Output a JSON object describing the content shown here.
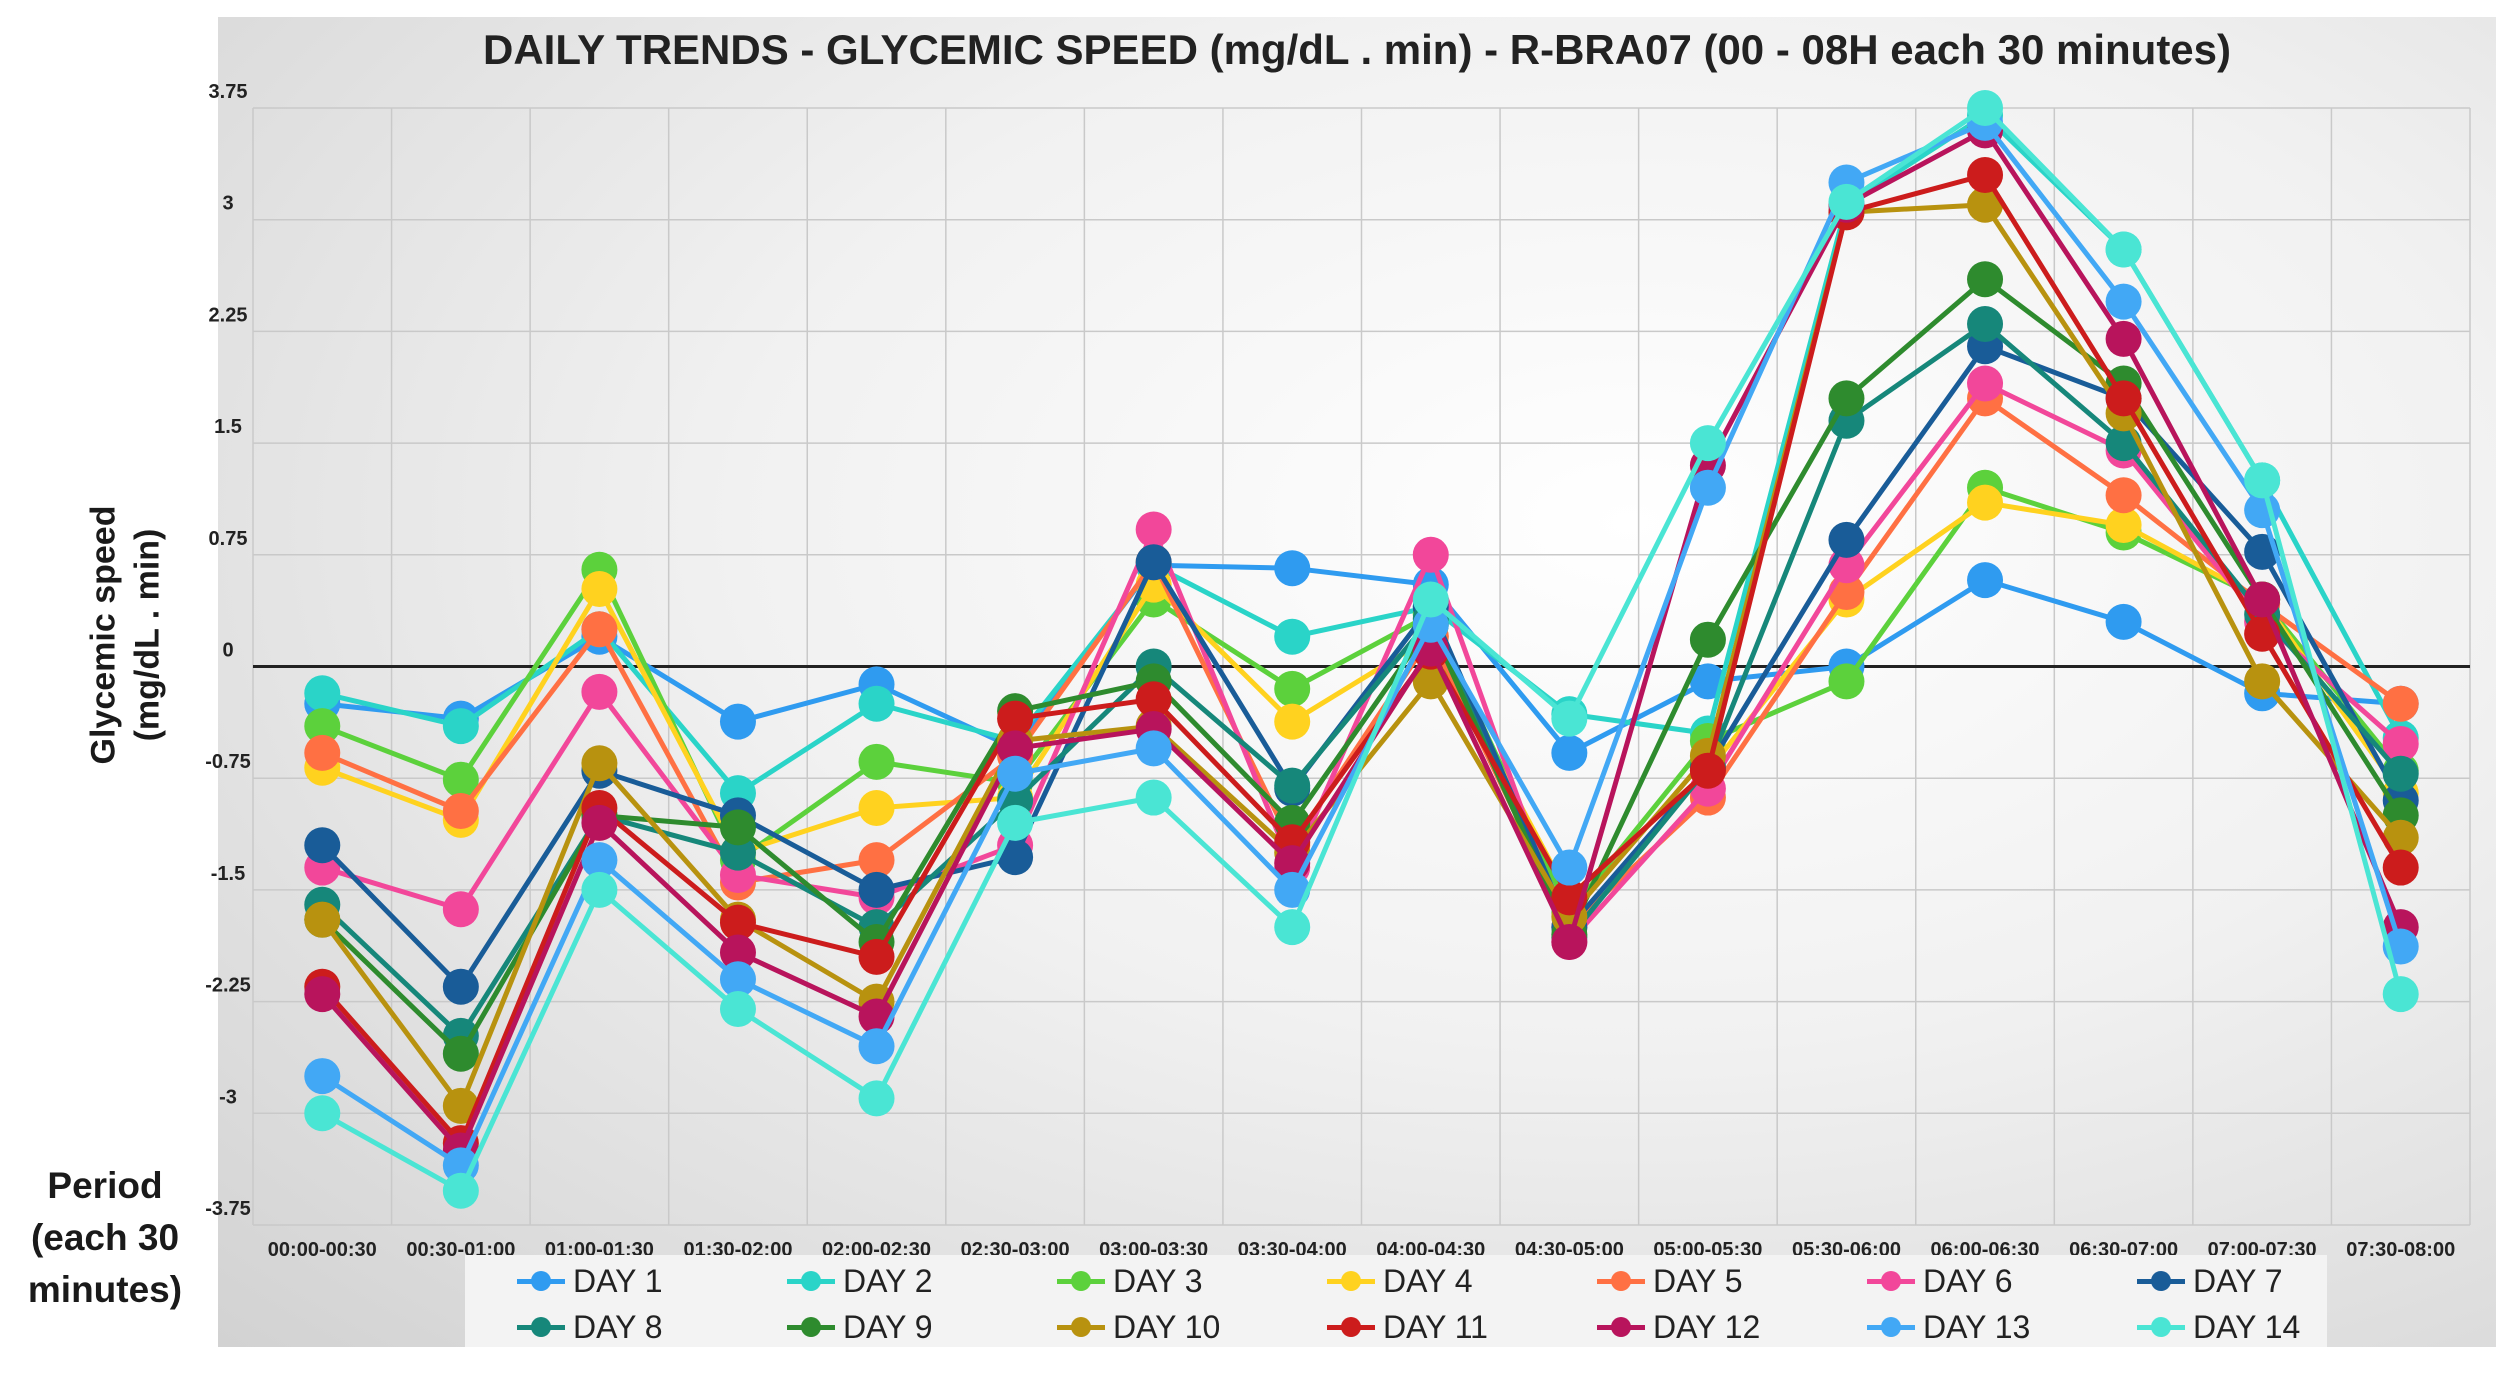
{
  "chart_data": {
    "type": "line",
    "title": "DAILY TRENDS - GLYCEMIC SPEED (mg/dL . min) - R-BRA07 (00 - 08H each 30 minutes)",
    "ylabel_line1": "Glycemic speed",
    "ylabel_line2": "(mg/dL . min)",
    "xlabel_line1": "Period",
    "xlabel_line2": "(each 30",
    "xlabel_line3": "minutes)",
    "ylim": [
      -3.75,
      3.75
    ],
    "yticks": [
      -3.75,
      -3,
      -2.25,
      -1.5,
      -0.75,
      0,
      0.75,
      1.5,
      2.25,
      3,
      3.75
    ],
    "ytick_labels": [
      "-3.75",
      "-3",
      "-2.25",
      "-1.5",
      "-0.75",
      "0",
      "0.75",
      "1.5",
      "2.25",
      "3",
      "3.75"
    ],
    "categories": [
      "00:00-00:30",
      "00:30-01:00",
      "01:00-01:30",
      "01:30-02:00",
      "02:00-02:30",
      "02:30-03:00",
      "03:00-03:30",
      "03:30-04:00",
      "04:00-04:30",
      "04:30-05:00",
      "05:00-05:30",
      "05:30-06:00",
      "06:00-06:30",
      "06:30-07:00",
      "07:00-07:30",
      "07:30-08:00"
    ],
    "legend_position": "bottom",
    "series": [
      {
        "name": "DAY 1",
        "color": "#2f9bf0",
        "values": [
          -0.25,
          -0.35,
          0.2,
          -0.37,
          -0.12,
          -0.55,
          0.68,
          0.66,
          0.55,
          -0.58,
          -0.1,
          0.0,
          0.58,
          0.3,
          -0.18,
          -0.25
        ]
      },
      {
        "name": "DAY 2",
        "color": "#2ad4c8",
        "values": [
          -0.18,
          -0.4,
          0.25,
          -0.85,
          -0.25,
          -0.5,
          0.68,
          0.2,
          0.4,
          -0.32,
          -0.45,
          3.1,
          3.7,
          2.8,
          1.25,
          -0.48
        ]
      },
      {
        "name": "DAY 3",
        "color": "#5cd13c",
        "values": [
          -0.4,
          -0.76,
          0.65,
          -1.3,
          -0.64,
          -0.78,
          0.45,
          -0.15,
          0.35,
          -1.65,
          -0.5,
          -0.1,
          1.2,
          0.9,
          0.45,
          -0.7
        ]
      },
      {
        "name": "DAY 4",
        "color": "#ffd21f",
        "values": [
          -0.68,
          -1.03,
          0.52,
          -1.25,
          -0.95,
          -0.88,
          0.55,
          -0.37,
          0.2,
          -1.55,
          -0.7,
          0.45,
          1.1,
          0.95,
          0.45,
          -0.85
        ]
      },
      {
        "name": "DAY 5",
        "color": "#ff7043",
        "values": [
          -0.58,
          -0.97,
          0.25,
          -1.45,
          -1.3,
          -0.6,
          0.7,
          -1.2,
          0.2,
          -1.75,
          -0.88,
          0.5,
          1.8,
          1.15,
          0.42,
          -0.25
        ]
      },
      {
        "name": "DAY 6",
        "color": "#f2479a",
        "values": [
          -1.35,
          -1.63,
          -0.17,
          -1.4,
          -1.55,
          -1.2,
          0.92,
          -1.35,
          0.75,
          -1.85,
          -0.82,
          0.68,
          1.9,
          1.45,
          0.3,
          -0.52
        ]
      },
      {
        "name": "DAY 7",
        "color": "#195c98",
        "values": [
          -1.2,
          -2.15,
          -0.7,
          -1.0,
          -1.5,
          -1.28,
          0.7,
          -0.82,
          0.4,
          -1.75,
          -0.68,
          0.85,
          2.15,
          1.8,
          0.77,
          -0.9
        ]
      },
      {
        "name": "DAY 8",
        "color": "#16877a",
        "values": [
          -1.6,
          -2.48,
          -1.0,
          -1.25,
          -1.75,
          -0.9,
          0.0,
          -0.8,
          0.32,
          -1.82,
          -0.68,
          1.65,
          2.3,
          1.5,
          0.35,
          -0.72
        ]
      },
      {
        "name": "DAY 9",
        "color": "#2e8b2e",
        "values": [
          -1.7,
          -2.6,
          -1.0,
          -1.08,
          -1.85,
          -0.3,
          -0.1,
          -1.05,
          0.28,
          -1.8,
          0.18,
          1.8,
          2.6,
          1.9,
          0.45,
          -1.0
        ]
      },
      {
        "name": "DAY 10",
        "color": "#b8920f",
        "values": [
          -1.7,
          -2.95,
          -0.65,
          -1.7,
          -2.25,
          -0.5,
          -0.4,
          -1.25,
          -0.1,
          -1.68,
          -0.6,
          3.05,
          3.1,
          1.7,
          -0.1,
          -1.15
        ]
      },
      {
        "name": "DAY 11",
        "color": "#cc1c1c",
        "values": [
          -2.15,
          -3.2,
          -0.95,
          -1.72,
          -1.95,
          -0.35,
          -0.22,
          -1.18,
          0.1,
          -1.55,
          -0.7,
          3.05,
          3.3,
          1.8,
          0.22,
          -1.35
        ]
      },
      {
        "name": "DAY 12",
        "color": "#b8145c",
        "values": [
          -2.2,
          -3.25,
          -1.05,
          -1.92,
          -2.35,
          -0.55,
          -0.42,
          -1.32,
          0.12,
          -1.85,
          1.35,
          3.1,
          3.6,
          2.2,
          0.45,
          -1.75
        ]
      },
      {
        "name": "DAY 13",
        "color": "#42a8f5",
        "values": [
          -2.75,
          -3.35,
          -1.3,
          -2.1,
          -2.55,
          -0.72,
          -0.55,
          -1.5,
          0.28,
          -1.35,
          1.2,
          3.25,
          3.65,
          2.45,
          1.05,
          -1.88
        ]
      },
      {
        "name": "DAY 14",
        "color": "#4ae5d4",
        "values": [
          -3.0,
          -3.52,
          -1.5,
          -2.3,
          -2.9,
          -1.05,
          -0.88,
          -1.75,
          0.45,
          -0.35,
          1.5,
          3.12,
          3.75,
          2.8,
          1.25,
          -2.2
        ]
      }
    ]
  }
}
